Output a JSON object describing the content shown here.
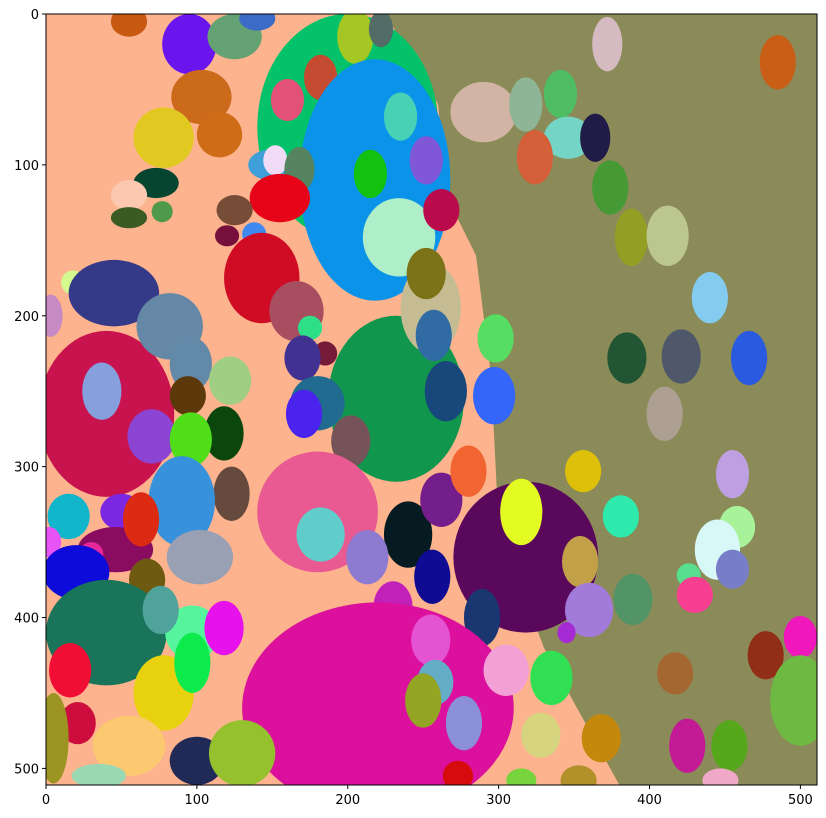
{
  "chart_data": {
    "type": "heatmap",
    "description_free": true,
    "xlim": [
      0,
      511
    ],
    "ylim": [
      511,
      0
    ],
    "x_ticks": [
      "0",
      "100",
      "200",
      "300",
      "400",
      "500"
    ],
    "y_ticks": [
      "0",
      "100",
      "200",
      "300",
      "400",
      "500"
    ],
    "background_regions": [
      {
        "color": "#fdb38d"
      },
      {
        "color": "#8a8b58"
      }
    ],
    "segments": [
      {
        "cx": 55,
        "cy": 5,
        "rx": 12,
        "ry": 10,
        "color": "#c75a10"
      },
      {
        "cx": 95,
        "cy": 20,
        "rx": 18,
        "ry": 20,
        "color": "#6b15ee"
      },
      {
        "cx": 125,
        "cy": 15,
        "rx": 18,
        "ry": 15,
        "color": "#64a173"
      },
      {
        "cx": 140,
        "cy": 3,
        "rx": 12,
        "ry": 8,
        "color": "#3b6bc7"
      },
      {
        "cx": 200,
        "cy": 75,
        "rx": 60,
        "ry": 75,
        "color": "#03c26a"
      },
      {
        "cx": 205,
        "cy": 15,
        "rx": 12,
        "ry": 18,
        "color": "#a4c724"
      },
      {
        "cx": 222,
        "cy": 10,
        "rx": 8,
        "ry": 12,
        "color": "#536c67"
      },
      {
        "cx": 103,
        "cy": 55,
        "rx": 20,
        "ry": 18,
        "color": "#cc6a1c"
      },
      {
        "cx": 115,
        "cy": 80,
        "rx": 15,
        "ry": 15,
        "color": "#cf6c17"
      },
      {
        "cx": 78,
        "cy": 82,
        "rx": 20,
        "ry": 20,
        "color": "#e2c921"
      },
      {
        "cx": 160,
        "cy": 57,
        "rx": 11,
        "ry": 14,
        "color": "#e35178"
      },
      {
        "cx": 182,
        "cy": 42,
        "rx": 11,
        "ry": 15,
        "color": "#c54b30"
      },
      {
        "cx": 218,
        "cy": 110,
        "rx": 50,
        "ry": 80,
        "color": "#0b93e9"
      },
      {
        "cx": 235,
        "cy": 68,
        "rx": 11,
        "ry": 16,
        "color": "#47d1b5"
      },
      {
        "cx": 252,
        "cy": 97,
        "rx": 11,
        "ry": 16,
        "color": "#7f57d7"
      },
      {
        "cx": 215,
        "cy": 106,
        "rx": 11,
        "ry": 16,
        "color": "#13c111"
      },
      {
        "cx": 148,
        "cy": 100,
        "rx": 14,
        "ry": 10,
        "color": "#3fa0d9"
      },
      {
        "cx": 152,
        "cy": 97,
        "rx": 8,
        "ry": 10,
        "color": "#f1dcf8"
      },
      {
        "cx": 168,
        "cy": 103,
        "rx": 10,
        "ry": 15,
        "color": "#568360"
      },
      {
        "cx": 155,
        "cy": 122,
        "rx": 20,
        "ry": 16,
        "color": "#e70418"
      },
      {
        "cx": 73,
        "cy": 112,
        "rx": 15,
        "ry": 10,
        "color": "#064631"
      },
      {
        "cx": 55,
        "cy": 120,
        "rx": 12,
        "ry": 10,
        "color": "#fcc8b0"
      },
      {
        "cx": 55,
        "cy": 135,
        "rx": 12,
        "ry": 7,
        "color": "#3a5b23"
      },
      {
        "cx": 77,
        "cy": 131,
        "rx": 7,
        "ry": 7,
        "color": "#4e9a4a"
      },
      {
        "cx": 125,
        "cy": 130,
        "rx": 12,
        "ry": 10,
        "color": "#784d38"
      },
      {
        "cx": 120,
        "cy": 147,
        "rx": 8,
        "ry": 7,
        "color": "#760f3b"
      },
      {
        "cx": 138,
        "cy": 146,
        "rx": 8,
        "ry": 8,
        "color": "#3f8af0"
      },
      {
        "cx": 143,
        "cy": 175,
        "rx": 25,
        "ry": 30,
        "color": "#d00c25"
      },
      {
        "cx": 234,
        "cy": 148,
        "rx": 24,
        "ry": 26,
        "color": "#aeeec9"
      },
      {
        "cx": 262,
        "cy": 130,
        "rx": 12,
        "ry": 14,
        "color": "#bb0a4c"
      },
      {
        "cx": 290,
        "cy": 65,
        "rx": 22,
        "ry": 20,
        "color": "#d1b4a3"
      },
      {
        "cx": 318,
        "cy": 60,
        "rx": 11,
        "ry": 18,
        "color": "#8eb595"
      },
      {
        "cx": 341,
        "cy": 53,
        "rx": 11,
        "ry": 16,
        "color": "#4ebd64"
      },
      {
        "cx": 346,
        "cy": 82,
        "rx": 16,
        "ry": 14,
        "color": "#74d5c7"
      },
      {
        "cx": 324,
        "cy": 95,
        "rx": 12,
        "ry": 18,
        "color": "#d45f38"
      },
      {
        "cx": 364,
        "cy": 82,
        "rx": 10,
        "ry": 16,
        "color": "#201b47"
      },
      {
        "cx": 372,
        "cy": 20,
        "rx": 10,
        "ry": 18,
        "color": "#d6bac1"
      },
      {
        "cx": 485,
        "cy": 32,
        "rx": 12,
        "ry": 18,
        "color": "#c95e16"
      },
      {
        "cx": 374,
        "cy": 115,
        "rx": 12,
        "ry": 18,
        "color": "#469a36"
      },
      {
        "cx": 388,
        "cy": 148,
        "rx": 11,
        "ry": 19,
        "color": "#939e25"
      },
      {
        "cx": 412,
        "cy": 147,
        "rx": 14,
        "ry": 20,
        "color": "#bcc68f"
      },
      {
        "cx": 440,
        "cy": 188,
        "rx": 12,
        "ry": 17,
        "color": "#84ccef"
      },
      {
        "cx": 18,
        "cy": 178,
        "rx": 8,
        "ry": 8,
        "color": "#d3f98f"
      },
      {
        "cx": 3,
        "cy": 200,
        "rx": 8,
        "ry": 14,
        "color": "#c78ac3"
      },
      {
        "cx": 45,
        "cy": 185,
        "rx": 30,
        "ry": 22,
        "color": "#353a88"
      },
      {
        "cx": 40,
        "cy": 265,
        "rx": 45,
        "ry": 55,
        "color": "#c9134f"
      },
      {
        "cx": 82,
        "cy": 207,
        "rx": 22,
        "ry": 22,
        "color": "#6488a6"
      },
      {
        "cx": 96,
        "cy": 232,
        "rx": 14,
        "ry": 18,
        "color": "#6289a8"
      },
      {
        "cx": 166,
        "cy": 197,
        "rx": 18,
        "ry": 20,
        "color": "#a74e60"
      },
      {
        "cx": 232,
        "cy": 255,
        "rx": 45,
        "ry": 55,
        "color": "#11964d"
      },
      {
        "cx": 175,
        "cy": 208,
        "rx": 8,
        "ry": 8,
        "color": "#2ddf87"
      },
      {
        "cx": 185,
        "cy": 225,
        "rx": 8,
        "ry": 8,
        "color": "#761a39"
      },
      {
        "cx": 170,
        "cy": 228,
        "rx": 12,
        "ry": 15,
        "color": "#413292"
      },
      {
        "cx": 255,
        "cy": 195,
        "rx": 20,
        "ry": 30,
        "color": "#c6bc94"
      },
      {
        "cx": 252,
        "cy": 172,
        "rx": 13,
        "ry": 17,
        "color": "#7c7319"
      },
      {
        "cx": 257,
        "cy": 213,
        "rx": 12,
        "ry": 17,
        "color": "#306ca3"
      },
      {
        "cx": 298,
        "cy": 215,
        "rx": 12,
        "ry": 16,
        "color": "#57dd62"
      },
      {
        "cx": 265,
        "cy": 250,
        "rx": 14,
        "ry": 20,
        "color": "#18487b"
      },
      {
        "cx": 297,
        "cy": 253,
        "rx": 14,
        "ry": 19,
        "color": "#3466fb"
      },
      {
        "cx": 180,
        "cy": 258,
        "rx": 18,
        "ry": 18,
        "color": "#216b90"
      },
      {
        "cx": 171,
        "cy": 265,
        "rx": 12,
        "ry": 16,
        "color": "#4a23ec"
      },
      {
        "cx": 202,
        "cy": 283,
        "rx": 13,
        "ry": 17,
        "color": "#755359"
      },
      {
        "cx": 385,
        "cy": 228,
        "rx": 13,
        "ry": 17,
        "color": "#225533"
      },
      {
        "cx": 421,
        "cy": 227,
        "rx": 13,
        "ry": 18,
        "color": "#4e586a"
      },
      {
        "cx": 466,
        "cy": 228,
        "rx": 12,
        "ry": 18,
        "color": "#295ae0"
      },
      {
        "cx": 410,
        "cy": 265,
        "rx": 12,
        "ry": 18,
        "color": "#ada092"
      },
      {
        "cx": 37,
        "cy": 250,
        "rx": 13,
        "ry": 19,
        "color": "#85a0dd"
      },
      {
        "cx": 122,
        "cy": 243,
        "rx": 14,
        "ry": 16,
        "color": "#a0ce85"
      },
      {
        "cx": 94,
        "cy": 253,
        "rx": 12,
        "ry": 13,
        "color": "#5c380a"
      },
      {
        "cx": 118,
        "cy": 278,
        "rx": 13,
        "ry": 18,
        "color": "#0b460c"
      },
      {
        "cx": 70,
        "cy": 280,
        "rx": 16,
        "ry": 18,
        "color": "#8b45d2"
      },
      {
        "cx": 96,
        "cy": 282,
        "rx": 14,
        "ry": 18,
        "color": "#4fde17"
      },
      {
        "cx": 123,
        "cy": 318,
        "rx": 12,
        "ry": 18,
        "color": "#674a3e"
      },
      {
        "cx": 90,
        "cy": 323,
        "rx": 22,
        "ry": 30,
        "color": "#3792db"
      },
      {
        "cx": 50,
        "cy": 330,
        "rx": 14,
        "ry": 12,
        "color": "#7c28e2"
      },
      {
        "cx": 46,
        "cy": 355,
        "rx": 25,
        "ry": 15,
        "color": "#8a0c61"
      },
      {
        "cx": 63,
        "cy": 335,
        "rx": 12,
        "ry": 18,
        "color": "#dc2a13"
      },
      {
        "cx": 15,
        "cy": 333,
        "rx": 14,
        "ry": 15,
        "color": "#12b6cb"
      },
      {
        "cx": 2,
        "cy": 350,
        "rx": 8,
        "ry": 10,
        "color": "#e853f6"
      },
      {
        "cx": 180,
        "cy": 330,
        "rx": 40,
        "ry": 40,
        "color": "#ea5a92"
      },
      {
        "cx": 182,
        "cy": 345,
        "rx": 16,
        "ry": 18,
        "color": "#60cdcb"
      },
      {
        "cx": 240,
        "cy": 345,
        "rx": 16,
        "ry": 22,
        "color": "#061b21"
      },
      {
        "cx": 213,
        "cy": 360,
        "rx": 14,
        "ry": 18,
        "color": "#8c7bd1"
      },
      {
        "cx": 262,
        "cy": 322,
        "rx": 14,
        "ry": 18,
        "color": "#741e8b"
      },
      {
        "cx": 280,
        "cy": 303,
        "rx": 12,
        "ry": 17,
        "color": "#f26432"
      },
      {
        "cx": 318,
        "cy": 360,
        "rx": 48,
        "ry": 50,
        "color": "#5a085b"
      },
      {
        "cx": 315,
        "cy": 330,
        "rx": 14,
        "ry": 22,
        "color": "#e3fa23"
      },
      {
        "cx": 356,
        "cy": 303,
        "rx": 12,
        "ry": 14,
        "color": "#dec00a"
      },
      {
        "cx": 381,
        "cy": 333,
        "rx": 12,
        "ry": 14,
        "color": "#2eebad"
      },
      {
        "cx": 354,
        "cy": 363,
        "rx": 12,
        "ry": 17,
        "color": "#c2a048"
      },
      {
        "cx": 360,
        "cy": 395,
        "rx": 16,
        "ry": 18,
        "color": "#a27ada"
      },
      {
        "cx": 389,
        "cy": 388,
        "rx": 13,
        "ry": 17,
        "color": "#529466"
      },
      {
        "cx": 256,
        "cy": 373,
        "rx": 12,
        "ry": 18,
        "color": "#0f0c93"
      },
      {
        "cx": 230,
        "cy": 393,
        "rx": 13,
        "ry": 17,
        "color": "#c121b9"
      },
      {
        "cx": 289,
        "cy": 400,
        "rx": 12,
        "ry": 19,
        "color": "#1a3772"
      },
      {
        "cx": 455,
        "cy": 305,
        "rx": 11,
        "ry": 16,
        "color": "#bd9fe2"
      },
      {
        "cx": 458,
        "cy": 340,
        "rx": 12,
        "ry": 14,
        "color": "#a8f29a"
      },
      {
        "cx": 445,
        "cy": 355,
        "rx": 15,
        "ry": 20,
        "color": "#d7f8f7"
      },
      {
        "cx": 455,
        "cy": 368,
        "rx": 11,
        "ry": 13,
        "color": "#787dc8"
      },
      {
        "cx": 426,
        "cy": 372,
        "rx": 8,
        "ry": 8,
        "color": "#58df8d"
      },
      {
        "cx": 430,
        "cy": 385,
        "rx": 12,
        "ry": 12,
        "color": "#f63f90"
      },
      {
        "cx": 30,
        "cy": 358,
        "rx": 8,
        "ry": 8,
        "color": "#e6289c"
      },
      {
        "cx": 20,
        "cy": 370,
        "rx": 22,
        "ry": 18,
        "color": "#0c0bd9"
      },
      {
        "cx": 67,
        "cy": 375,
        "rx": 12,
        "ry": 14,
        "color": "#6e5a11"
      },
      {
        "cx": 102,
        "cy": 360,
        "rx": 22,
        "ry": 18,
        "color": "#9aa0b4"
      },
      {
        "cx": 40,
        "cy": 410,
        "rx": 40,
        "ry": 35,
        "color": "#1a745a"
      },
      {
        "cx": 97,
        "cy": 410,
        "rx": 18,
        "ry": 18,
        "color": "#56f59d"
      },
      {
        "cx": 76,
        "cy": 395,
        "rx": 12,
        "ry": 16,
        "color": "#50a39b"
      },
      {
        "cx": 118,
        "cy": 407,
        "rx": 13,
        "ry": 18,
        "color": "#e711ec"
      },
      {
        "cx": 220,
        "cy": 460,
        "rx": 90,
        "ry": 70,
        "color": "#db109c"
      },
      {
        "cx": 255,
        "cy": 415,
        "rx": 13,
        "ry": 17,
        "color": "#e453d1"
      },
      {
        "cx": 258,
        "cy": 443,
        "rx": 12,
        "ry": 15,
        "color": "#63adc7"
      },
      {
        "cx": 305,
        "cy": 435,
        "rx": 15,
        "ry": 17,
        "color": "#f2a0d5"
      },
      {
        "cx": 335,
        "cy": 440,
        "rx": 14,
        "ry": 18,
        "color": "#31e052"
      },
      {
        "cx": 250,
        "cy": 455,
        "rx": 12,
        "ry": 18,
        "color": "#94a423"
      },
      {
        "cx": 277,
        "cy": 470,
        "rx": 12,
        "ry": 18,
        "color": "#8b8fd8"
      },
      {
        "cx": 328,
        "cy": 478,
        "rx": 13,
        "ry": 15,
        "color": "#d7d47f"
      },
      {
        "cx": 368,
        "cy": 480,
        "rx": 13,
        "ry": 16,
        "color": "#c4880c"
      },
      {
        "cx": 16,
        "cy": 435,
        "rx": 14,
        "ry": 18,
        "color": "#f00e35"
      },
      {
        "cx": 78,
        "cy": 450,
        "rx": 20,
        "ry": 25,
        "color": "#e8d20f"
      },
      {
        "cx": 97,
        "cy": 430,
        "rx": 12,
        "ry": 20,
        "color": "#0deb4c"
      },
      {
        "cx": 21,
        "cy": 470,
        "rx": 12,
        "ry": 14,
        "color": "#cc0d3e"
      },
      {
        "cx": 55,
        "cy": 485,
        "rx": 24,
        "ry": 20,
        "color": "#fcc870"
      },
      {
        "cx": 5,
        "cy": 480,
        "rx": 10,
        "ry": 30,
        "color": "#9b9422"
      },
      {
        "cx": 35,
        "cy": 505,
        "rx": 18,
        "ry": 8,
        "color": "#99d8b3"
      },
      {
        "cx": 100,
        "cy": 495,
        "rx": 18,
        "ry": 16,
        "color": "#212957"
      },
      {
        "cx": 130,
        "cy": 490,
        "rx": 22,
        "ry": 22,
        "color": "#96c12f"
      },
      {
        "cx": 273,
        "cy": 505,
        "rx": 10,
        "ry": 10,
        "color": "#d60b0b"
      },
      {
        "cx": 315,
        "cy": 508,
        "rx": 10,
        "ry": 8,
        "color": "#78d43c"
      },
      {
        "cx": 353,
        "cy": 508,
        "rx": 12,
        "ry": 10,
        "color": "#b2902a"
      },
      {
        "cx": 417,
        "cy": 437,
        "rx": 12,
        "ry": 14,
        "color": "#a46731"
      },
      {
        "cx": 477,
        "cy": 425,
        "rx": 12,
        "ry": 16,
        "color": "#912e18"
      },
      {
        "cx": 500,
        "cy": 413,
        "rx": 11,
        "ry": 14,
        "color": "#f018bd"
      },
      {
        "cx": 500,
        "cy": 455,
        "rx": 20,
        "ry": 30,
        "color": "#6db941"
      },
      {
        "cx": 425,
        "cy": 485,
        "rx": 12,
        "ry": 18,
        "color": "#c31b95"
      },
      {
        "cx": 453,
        "cy": 485,
        "rx": 12,
        "ry": 17,
        "color": "#56a71c"
      },
      {
        "cx": 447,
        "cy": 508,
        "rx": 12,
        "ry": 8,
        "color": "#f0a8c7"
      },
      {
        "cx": 345,
        "cy": 410,
        "rx": 6,
        "ry": 7,
        "color": "#a62ad4"
      }
    ]
  }
}
